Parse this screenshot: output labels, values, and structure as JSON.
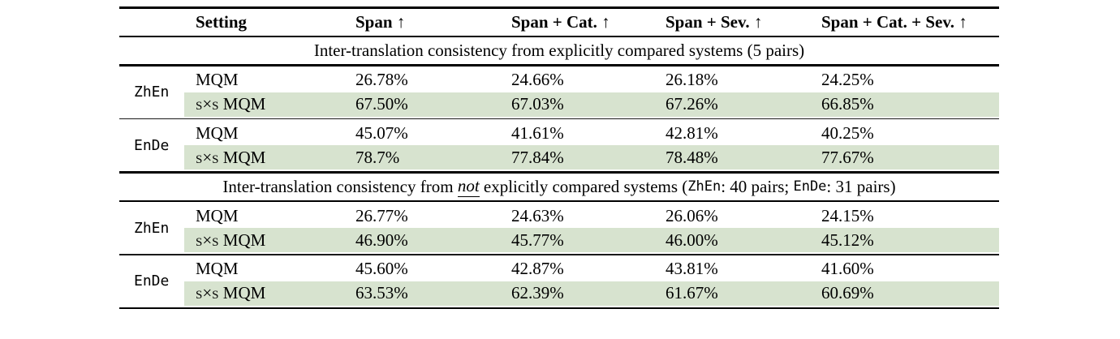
{
  "table": {
    "highlight_color": "#d7e3cf",
    "header": {
      "setting": "Setting",
      "span": "Span ↑",
      "span_cat": "Span + Cat. ↑",
      "span_sev": "Span + Sev. ↑",
      "span_cat_sev": "Span + Cat. + Sev. ↑"
    },
    "sections": [
      {
        "title": "Inter-translation consistency from explicitly compared systems (5 pairs)",
        "groups": [
          {
            "lang": "ZhEn",
            "rows": [
              {
                "setting": "MQM",
                "v1": "26.78%",
                "v2": "24.66%",
                "v3": "26.18%",
                "v4": "24.25%"
              },
              {
                "setting": "s×s MQM",
                "v1": "67.50%",
                "v2": "67.03%",
                "v3": "67.26%",
                "v4": "66.85%"
              }
            ]
          },
          {
            "lang": "EnDe",
            "rows": [
              {
                "setting": "MQM",
                "v1": "45.07%",
                "v2": "41.61%",
                "v3": "42.81%",
                "v4": "40.25%"
              },
              {
                "setting": "s×s MQM",
                "v1": "78.7%",
                "v2": "77.84%",
                "v3": "78.48%",
                "v4": "77.67%"
              }
            ]
          }
        ]
      },
      {
        "title_parts": {
          "p1": "Inter-translation consistency from ",
          "not_word": "not",
          "p2": " explicitly compared systems (",
          "zhen": "ZhEn",
          "p3": ": 40 pairs; ",
          "ende": "EnDe",
          "p4": ": 31 pairs)"
        },
        "groups": [
          {
            "lang": "ZhEn",
            "rows": [
              {
                "setting": "MQM",
                "v1": "26.77%",
                "v2": "24.63%",
                "v3": "26.06%",
                "v4": "24.15%"
              },
              {
                "setting": "s×s MQM",
                "v1": "46.90%",
                "v2": "45.77%",
                "v3": "46.00%",
                "v4": "45.12%"
              }
            ]
          },
          {
            "lang": "EnDe",
            "rows": [
              {
                "setting": "MQM",
                "v1": "45.60%",
                "v2": "42.87%",
                "v3": "43.81%",
                "v4": "41.60%"
              },
              {
                "setting": "s×s MQM",
                "v1": "63.53%",
                "v2": "62.39%",
                "v3": "61.67%",
                "v4": "60.69%"
              }
            ]
          }
        ]
      }
    ]
  }
}
